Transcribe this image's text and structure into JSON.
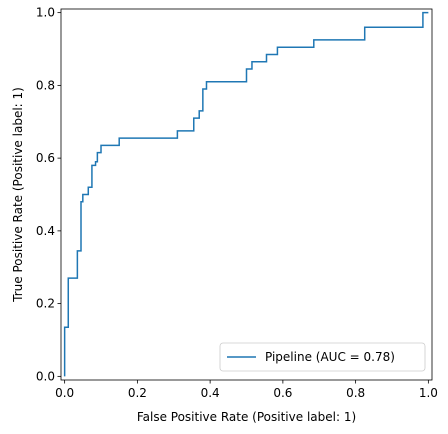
{
  "chart_data": {
    "type": "line",
    "title": "",
    "xlabel": "False Positive Rate (Positive label: 1)",
    "ylabel": "True Positive Rate (Positive label: 1)",
    "xlim": [
      -0.01,
      1.01
    ],
    "ylim": [
      -0.01,
      1.01
    ],
    "xticks": [
      0.0,
      0.2,
      0.4,
      0.6,
      0.8,
      1.0
    ],
    "xtick_labels": [
      "0.0",
      "0.2",
      "0.4",
      "0.6",
      "0.8",
      "1.0"
    ],
    "yticks": [
      0.0,
      0.2,
      0.4,
      0.6,
      0.8,
      1.0
    ],
    "ytick_labels": [
      "0.0",
      "0.2",
      "0.4",
      "0.6",
      "0.8",
      "1.0"
    ],
    "grid": false,
    "legend": {
      "position": "lower-right",
      "entries": [
        "Pipeline (AUC = 0.78)"
      ]
    },
    "series": [
      {
        "name": "Pipeline (AUC = 0.78)",
        "color": "#1f77b4",
        "step": true,
        "x": [
          0.0,
          0.0,
          0.01,
          0.01,
          0.035,
          0.035,
          0.045,
          0.045,
          0.05,
          0.05,
          0.065,
          0.065,
          0.075,
          0.075,
          0.085,
          0.085,
          0.09,
          0.09,
          0.1,
          0.1,
          0.15,
          0.15,
          0.215,
          0.215,
          0.31,
          0.31,
          0.355,
          0.355,
          0.37,
          0.37,
          0.38,
          0.38,
          0.39,
          0.39,
          0.5,
          0.5,
          0.515,
          0.515,
          0.555,
          0.555,
          0.585,
          0.585,
          0.685,
          0.685,
          0.825,
          0.825,
          0.985,
          0.985,
          1.0
        ],
        "y": [
          0.0,
          0.135,
          0.135,
          0.27,
          0.27,
          0.345,
          0.345,
          0.48,
          0.48,
          0.5,
          0.5,
          0.52,
          0.52,
          0.58,
          0.58,
          0.59,
          0.59,
          0.615,
          0.615,
          0.635,
          0.635,
          0.655,
          0.655,
          0.655,
          0.655,
          0.675,
          0.675,
          0.71,
          0.71,
          0.73,
          0.73,
          0.79,
          0.79,
          0.81,
          0.81,
          0.845,
          0.845,
          0.865,
          0.865,
          0.885,
          0.885,
          0.905,
          0.905,
          0.925,
          0.925,
          0.96,
          0.96,
          1.0,
          1.0
        ]
      }
    ]
  }
}
